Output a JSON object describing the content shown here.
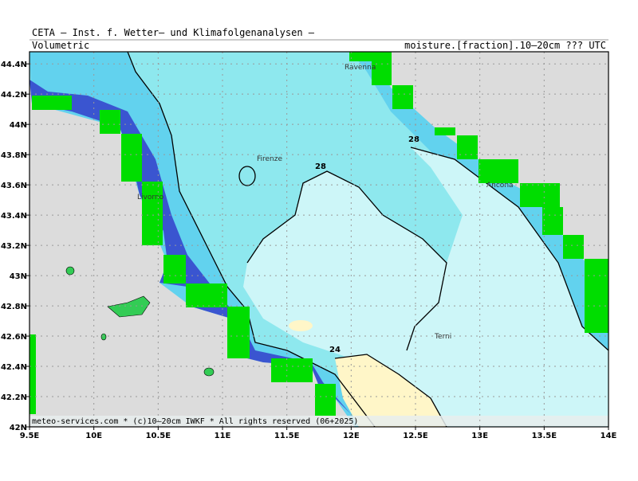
{
  "header": {
    "title": "CETA — Inst. f. Wetter— und Klimafolgenanalysen —",
    "left": "Volumetric",
    "right": "moisture.[fraction].10—20cm ??? UTC"
  },
  "footer": "meteo-services.com * (c)10—20cm IWKF * All rights reserved (06+2025)",
  "map": {
    "xlim": [
      9.5,
      14
    ],
    "ylim": [
      42,
      44.48
    ],
    "xticks": [
      {
        "value": 9.5,
        "label": "9.5E"
      },
      {
        "value": 10,
        "label": "10E"
      },
      {
        "value": 10.5,
        "label": "10.5E"
      },
      {
        "value": 11,
        "label": "11E"
      },
      {
        "value": 11.5,
        "label": "11.5E"
      },
      {
        "value": 12,
        "label": "12E"
      },
      {
        "value": 12.5,
        "label": "12.5E"
      },
      {
        "value": 13,
        "label": "13E"
      },
      {
        "value": 13.5,
        "label": "13.5E"
      },
      {
        "value": 14,
        "label": "14E"
      }
    ],
    "yticks": [
      {
        "value": 42,
        "label": "42N"
      },
      {
        "value": 42.2,
        "label": "42.2N"
      },
      {
        "value": 42.4,
        "label": "42.4N"
      },
      {
        "value": 42.6,
        "label": "42.6N"
      },
      {
        "value": 42.8,
        "label": "42.8N"
      },
      {
        "value": 43,
        "label": "43N"
      },
      {
        "value": 43.2,
        "label": "43.2N"
      },
      {
        "value": 43.4,
        "label": "43.4N"
      },
      {
        "value": 43.6,
        "label": "43.6N"
      },
      {
        "value": 43.8,
        "label": "43.8N"
      },
      {
        "value": 44,
        "label": "44N"
      },
      {
        "value": 44.2,
        "label": "44.2N"
      },
      {
        "value": 44.4,
        "label": "44.4N"
      }
    ],
    "places": [
      "Ravenna",
      "Firenze",
      "Livorno",
      "Ancona",
      "Terni"
    ],
    "contour_labels": [
      "28",
      "28",
      "24"
    ]
  }
}
